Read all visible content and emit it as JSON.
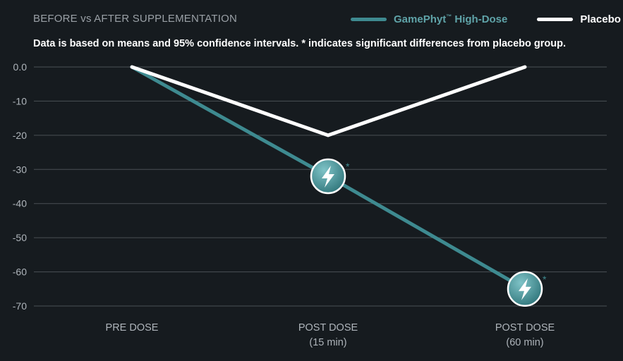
{
  "header": {
    "title": "BEFORE vs AFTER SUPPLEMENTATION",
    "subtitle": "Data is based on means and 95% confidence intervals. * indicates significant differences from placebo group."
  },
  "legend": {
    "items": [
      {
        "label": "GamePhyt",
        "mark": "™",
        "suffix": " High-Dose",
        "color": "#3e8a90"
      },
      {
        "label": "Placebo",
        "mark": "",
        "suffix": "",
        "color": "#ffffff"
      }
    ]
  },
  "colors": {
    "background": "#161b1f",
    "grid": "#4a5055",
    "tick_text": "#aeb4ba",
    "highdose": "#3e8a90",
    "placebo": "#ffffff",
    "marker_fill": "#4f9aa0"
  },
  "chart_data": {
    "type": "line",
    "title": "BEFORE vs AFTER SUPPLEMENTATION",
    "categories": [
      [
        "PRE DOSE"
      ],
      [
        "POST DOSE",
        "(15 min)"
      ],
      [
        "POST DOSE",
        "(60 min)"
      ]
    ],
    "y_ticks": [
      "0.0",
      "-10",
      "-20",
      "-30",
      "-40",
      "-50",
      "-60",
      "-70"
    ],
    "y_tick_values": [
      0,
      -10,
      -20,
      -30,
      -40,
      -50,
      -60,
      -70
    ],
    "ylim": [
      -70,
      0
    ],
    "grid": true,
    "legend_position": "top-right",
    "series": [
      {
        "name": "GamePhyt™ High-Dose",
        "values": [
          0,
          -32,
          -65
        ],
        "color": "#3e8a90",
        "markers": [
          null,
          "lightning-bolt",
          "lightning-bolt"
        ],
        "significance": [
          "",
          "*",
          "*"
        ]
      },
      {
        "name": "Placebo",
        "values": [
          0,
          -20,
          0
        ],
        "color": "#ffffff"
      }
    ]
  }
}
